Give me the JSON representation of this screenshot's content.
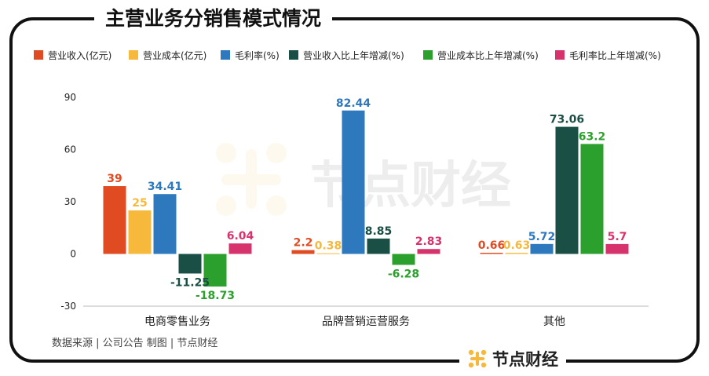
{
  "title": "主营业务分销售模式情况",
  "source": "数据来源 | 公司公告  制图 | 节点财经",
  "brand": "节点财经",
  "watermark": "节点财经",
  "chart_data": {
    "type": "bar",
    "categories": [
      "电商零售业务",
      "品牌营销运营服务",
      "其他"
    ],
    "series": [
      {
        "name": "营业收入(亿元)",
        "color": "#E04B22",
        "values": [
          39,
          2.2,
          0.66
        ],
        "labels": [
          "39",
          "2.2",
          "0.66"
        ]
      },
      {
        "name": "营业成本(亿元)",
        "color": "#F6B93B",
        "values": [
          25,
          0.38,
          0.63
        ],
        "labels": [
          "25",
          "0.38",
          "0.63"
        ]
      },
      {
        "name": "毛利率(%)",
        "color": "#2E78BE",
        "values": [
          34.41,
          82.44,
          5.72
        ],
        "labels": [
          "34.41",
          "82.44",
          "5.72"
        ]
      },
      {
        "name": "营业收入比上年增减(%)",
        "color": "#1A4F45",
        "values": [
          -11.25,
          8.85,
          73.06
        ],
        "labels": [
          "-11.25",
          "8.85",
          "73.06"
        ]
      },
      {
        "name": "营业成本比上年增减(%)",
        "color": "#2CA02C",
        "values": [
          -18.73,
          -6.28,
          63.2
        ],
        "labels": [
          "-18.73",
          "-6.28",
          "63.2"
        ]
      },
      {
        "name": "毛利率比上年增减(%)",
        "color": "#D6336C",
        "values": [
          6.04,
          2.83,
          5.7
        ],
        "labels": [
          "6.04",
          "2.83",
          "5.7"
        ]
      }
    ],
    "ylim": [
      -30,
      90
    ],
    "yticks": [
      -30,
      0,
      30,
      60,
      90
    ],
    "legend_position": "top"
  }
}
